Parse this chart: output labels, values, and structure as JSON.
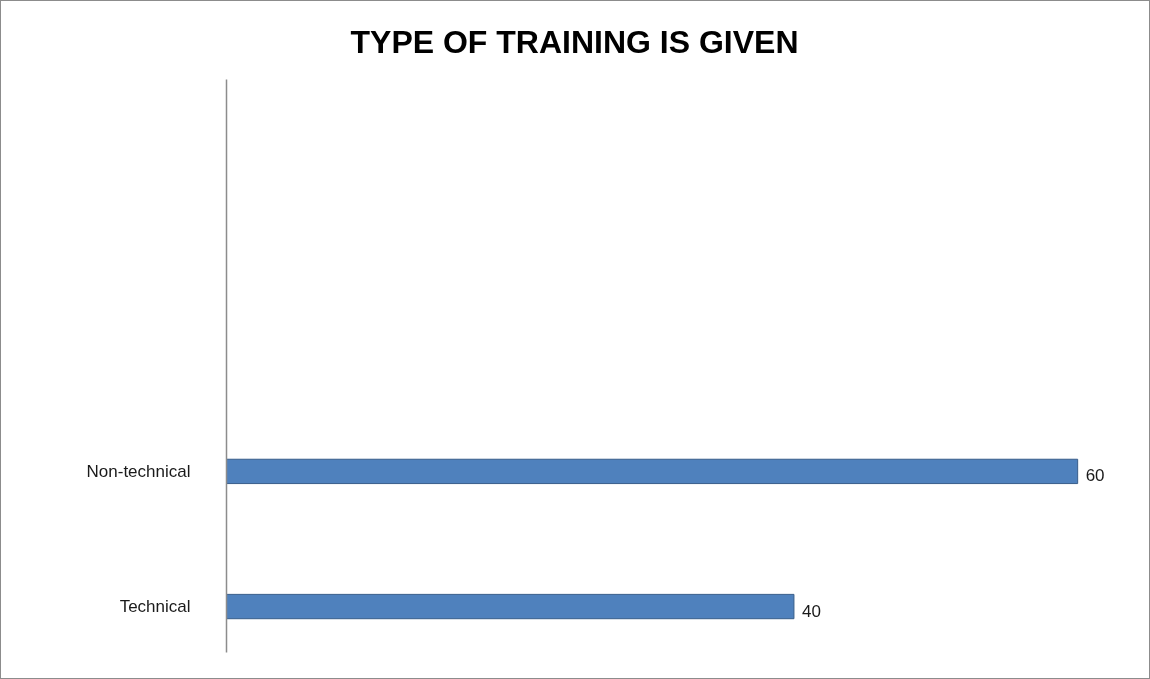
{
  "chart_data": {
    "type": "bar",
    "title": "TYPE OF TRAINING IS GIVEN",
    "orientation": "horizontal",
    "categories": [
      "Non-technical",
      "Technical"
    ],
    "values": [
      60,
      40
    ],
    "color": "#4f81bd",
    "data_labels": true
  }
}
